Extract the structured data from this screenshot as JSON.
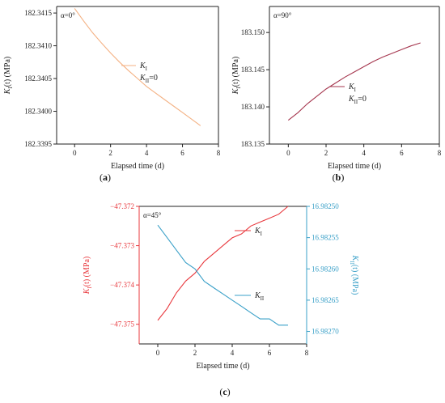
{
  "chart_data": [
    {
      "type": "line",
      "panel_label": "(a)",
      "annotation": "α=0°",
      "xlabel": "Elapsed time (d)",
      "ylabel": {
        "base": "K",
        "sub": "I",
        "tail": "(t) (MPa)"
      },
      "xlim": [
        -1,
        8
      ],
      "xticks": [
        "0",
        "2",
        "4",
        "6",
        "8"
      ],
      "ylim": [
        182.3395,
        182.3416
      ],
      "yticks": [
        "182.3395",
        "182.3400",
        "182.3405",
        "182.3410",
        "182.3415"
      ],
      "legend": [
        {
          "base": "K",
          "sub": "I",
          "tail": ""
        },
        {
          "base": "K",
          "sub": "II",
          "tail": "=0"
        }
      ],
      "series": [
        {
          "name": "KI",
          "axis": "left",
          "color": "#f4b183",
          "x": [
            0,
            0.5,
            1,
            1.5,
            2,
            2.5,
            3,
            3.5,
            4,
            4.5,
            5,
            5.5,
            6,
            6.5,
            7
          ],
          "y": [
            182.34157,
            182.34138,
            182.3412,
            182.34104,
            182.34089,
            182.34075,
            182.34062,
            182.3405,
            182.34038,
            182.34028,
            182.34018,
            182.34008,
            182.33998,
            182.33988,
            182.33978
          ]
        }
      ]
    },
    {
      "type": "line",
      "panel_label": "(b)",
      "annotation": "α=90°",
      "xlabel": "Elapsed time (d)",
      "ylabel": {
        "base": "K",
        "sub": "I",
        "tail": "(t) (MPa)"
      },
      "xlim": [
        -1,
        8
      ],
      "xticks": [
        "0",
        "2",
        "4",
        "6",
        "8"
      ],
      "ylim": [
        183.135,
        183.1535
      ],
      "yticks": [
        "183.135",
        "183.140",
        "183.145",
        "183.150"
      ],
      "legend": [
        {
          "base": "K",
          "sub": "I",
          "tail": ""
        },
        {
          "base": "K",
          "sub": "II",
          "tail": "=0"
        }
      ],
      "series": [
        {
          "name": "KI",
          "axis": "left",
          "color": "#a5364e",
          "x": [
            0,
            0.5,
            1,
            1.5,
            2,
            2.5,
            3,
            3.5,
            4,
            4.5,
            5,
            5.5,
            6,
            6.5,
            7
          ],
          "y": [
            183.1382,
            183.1392,
            183.1404,
            183.1414,
            183.1424,
            183.1432,
            183.144,
            183.1447,
            183.1454,
            183.1461,
            183.1467,
            183.1472,
            183.1477,
            183.1482,
            183.1486
          ]
        }
      ]
    },
    {
      "type": "line",
      "panel_label": "(c)",
      "annotation": "α=45°",
      "xlabel": "Elapsed time (d)",
      "ylabel": {
        "base": "K",
        "sub": "I",
        "tail": "(t) (MPa)"
      },
      "ylabel2": {
        "base": "K",
        "sub": "II",
        "tail": "(t) (MPa)"
      },
      "xlim": [
        -1,
        8
      ],
      "xticks": [
        "0",
        "2",
        "4",
        "6",
        "8"
      ],
      "ylim": [
        -47.3755,
        -47.372
      ],
      "yticks": [
        "-47.375",
        "-47.374",
        "-47.373",
        "-47.372"
      ],
      "ylim2": [
        16.9825,
        16.98272
      ],
      "y2ticks": [
        "16.98250",
        "16.98255",
        "16.98260",
        "16.98265",
        "16.98270"
      ],
      "y2_inverted": true,
      "left_axis_color": "#e8383d",
      "right_axis_color": "#3aa0c8",
      "legend": [
        {
          "base": "K",
          "sub": "I",
          "tail": "",
          "color": "#e8383d"
        },
        {
          "base": "K",
          "sub": "II",
          "tail": "",
          "color": "#3aa0c8"
        }
      ],
      "series": [
        {
          "name": "KI",
          "axis": "left",
          "color": "#e8383d",
          "x": [
            0,
            0.5,
            1,
            1.5,
            2,
            2.5,
            3,
            3.5,
            4,
            4.5,
            5,
            5.5,
            6,
            6.5,
            7
          ],
          "y": [
            -47.3749,
            -47.3746,
            -47.3742,
            -47.3739,
            -47.3737,
            -47.3734,
            -47.3732,
            -47.373,
            -47.3728,
            -47.3727,
            -47.3725,
            -47.3724,
            -47.3723,
            -47.3722,
            -47.372
          ]
        },
        {
          "name": "KII",
          "axis": "right",
          "color": "#3aa0c8",
          "x": [
            0,
            0.5,
            1,
            1.5,
            2,
            2.5,
            3,
            3.5,
            4,
            4.5,
            5,
            5.5,
            6,
            6.5,
            7
          ],
          "y": [
            16.98253,
            16.98255,
            16.98257,
            16.98259,
            16.9826,
            16.98262,
            16.98263,
            16.98264,
            16.98265,
            16.98266,
            16.98267,
            16.98268,
            16.98268,
            16.98269,
            16.98269
          ]
        }
      ]
    }
  ]
}
